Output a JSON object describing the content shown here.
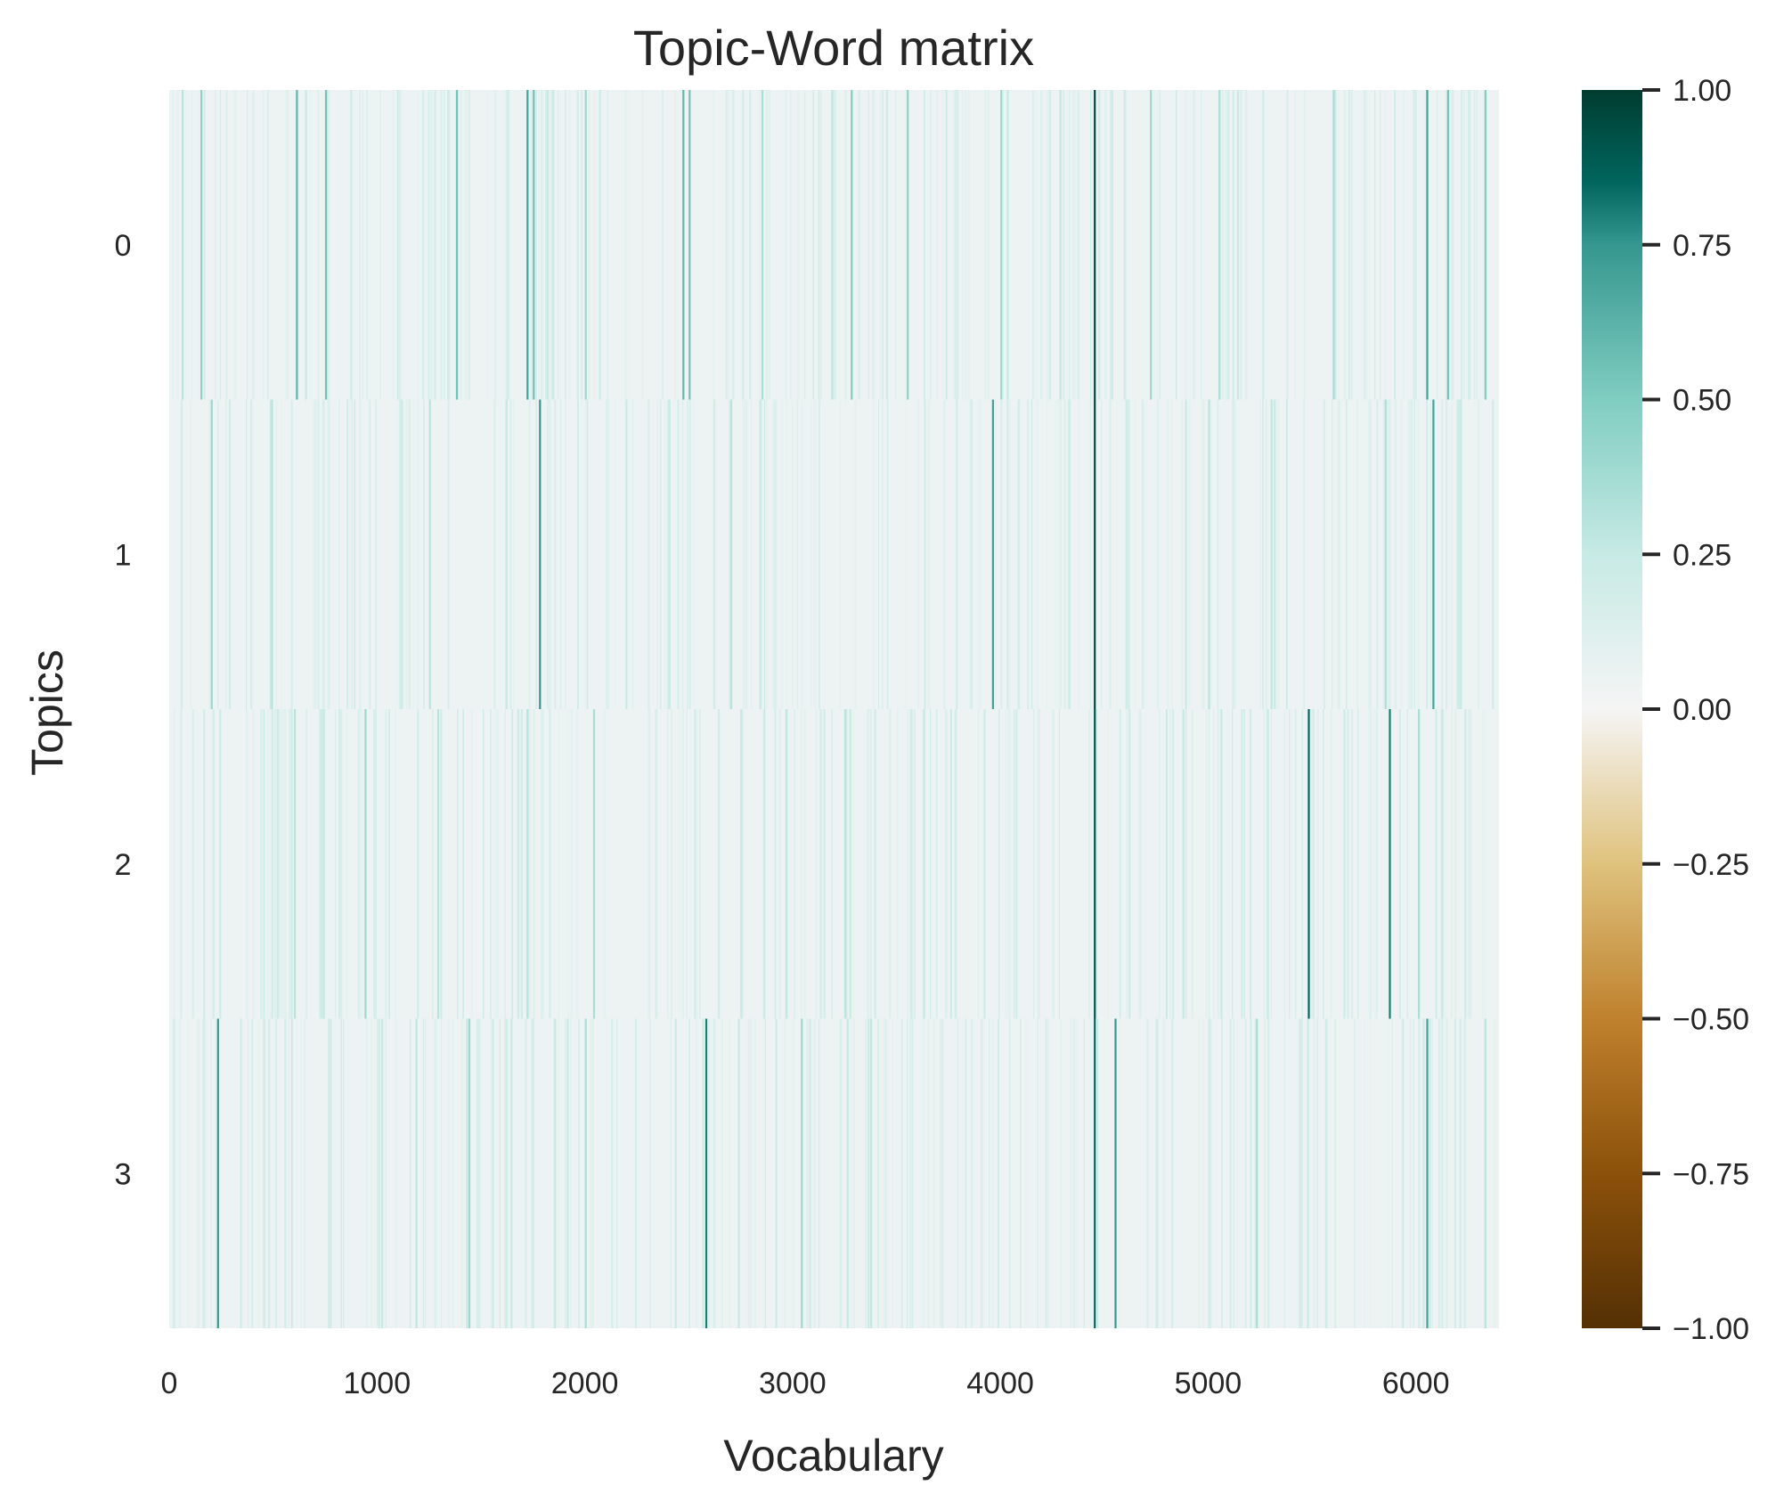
{
  "chart_data": {
    "type": "heatmap",
    "title": "Topic-Word matrix",
    "xlabel": "Vocabulary",
    "ylabel": "Topics",
    "rows": [
      "0",
      "1",
      "2",
      "3"
    ],
    "x_range": [
      0,
      6400
    ],
    "x_ticks": [
      0,
      1000,
      2000,
      3000,
      4000,
      5000,
      6000
    ],
    "x_tick_labels": [
      "0",
      "1000",
      "2000",
      "3000",
      "4000",
      "5000",
      "6000"
    ],
    "colormap": "BrBG",
    "colorbar": {
      "range": [
        -1.0,
        1.0
      ],
      "ticks": [
        1.0,
        0.75,
        0.5,
        0.25,
        0.0,
        -0.25,
        -0.5,
        -0.75,
        -1.0
      ],
      "tick_labels": [
        "1.00",
        "0.75",
        "0.50",
        "0.25",
        "0.00",
        "−0.25",
        "−0.50",
        "−0.75",
        "−1.00"
      ],
      "stops": [
        {
          "value": -1.0,
          "color": "#543005"
        },
        {
          "value": -0.75,
          "color": "#8c510a"
        },
        {
          "value": -0.5,
          "color": "#bf812d"
        },
        {
          "value": -0.25,
          "color": "#dfc27d"
        },
        {
          "value": 0.0,
          "color": "#f5f5f5"
        },
        {
          "value": 0.25,
          "color": "#c7eae5"
        },
        {
          "value": 0.5,
          "color": "#80cdc1"
        },
        {
          "value": 0.75,
          "color": "#35978f"
        },
        {
          "value": 0.85,
          "color": "#01665e"
        },
        {
          "value": 1.0,
          "color": "#003c30"
        }
      ]
    },
    "background_value": 0.05,
    "peaks": [
      [
        {
          "x": 60,
          "v": 0.3
        },
        {
          "x": 150,
          "v": 0.45
        },
        {
          "x": 610,
          "v": 0.6
        },
        {
          "x": 750,
          "v": 0.55
        },
        {
          "x": 1380,
          "v": 0.55
        },
        {
          "x": 1720,
          "v": 0.7
        },
        {
          "x": 1750,
          "v": 0.55
        },
        {
          "x": 2000,
          "v": 0.4
        },
        {
          "x": 2470,
          "v": 0.6
        },
        {
          "x": 2500,
          "v": 0.55
        },
        {
          "x": 2850,
          "v": 0.35
        },
        {
          "x": 3280,
          "v": 0.5
        },
        {
          "x": 3550,
          "v": 0.45
        },
        {
          "x": 4000,
          "v": 0.4
        },
        {
          "x": 4450,
          "v": 0.95
        },
        {
          "x": 4720,
          "v": 0.4
        },
        {
          "x": 5050,
          "v": 0.35
        },
        {
          "x": 5600,
          "v": 0.35
        },
        {
          "x": 6050,
          "v": 0.7
        },
        {
          "x": 6150,
          "v": 0.55
        },
        {
          "x": 6330,
          "v": 0.5
        }
      ],
      [
        {
          "x": 200,
          "v": 0.4
        },
        {
          "x": 490,
          "v": 0.3
        },
        {
          "x": 1250,
          "v": 0.3
        },
        {
          "x": 1780,
          "v": 0.75
        },
        {
          "x": 2700,
          "v": 0.3
        },
        {
          "x": 3960,
          "v": 0.7
        },
        {
          "x": 4450,
          "v": 0.95
        },
        {
          "x": 5000,
          "v": 0.3
        },
        {
          "x": 5850,
          "v": 0.35
        },
        {
          "x": 6080,
          "v": 0.7
        }
      ],
      [
        {
          "x": 600,
          "v": 0.3
        },
        {
          "x": 940,
          "v": 0.4
        },
        {
          "x": 1290,
          "v": 0.3
        },
        {
          "x": 1720,
          "v": 0.3
        },
        {
          "x": 2040,
          "v": 0.35
        },
        {
          "x": 3250,
          "v": 0.3
        },
        {
          "x": 4450,
          "v": 0.9
        },
        {
          "x": 5480,
          "v": 0.85
        },
        {
          "x": 5870,
          "v": 0.8
        },
        {
          "x": 6010,
          "v": 0.35
        }
      ],
      [
        {
          "x": 230,
          "v": 0.75
        },
        {
          "x": 1440,
          "v": 0.4
        },
        {
          "x": 2000,
          "v": 0.35
        },
        {
          "x": 2580,
          "v": 0.8
        },
        {
          "x": 3040,
          "v": 0.4
        },
        {
          "x": 4450,
          "v": 0.85
        },
        {
          "x": 4550,
          "v": 0.75
        },
        {
          "x": 5230,
          "v": 0.35
        },
        {
          "x": 6050,
          "v": 0.7
        },
        {
          "x": 6330,
          "v": 0.3
        }
      ]
    ]
  }
}
